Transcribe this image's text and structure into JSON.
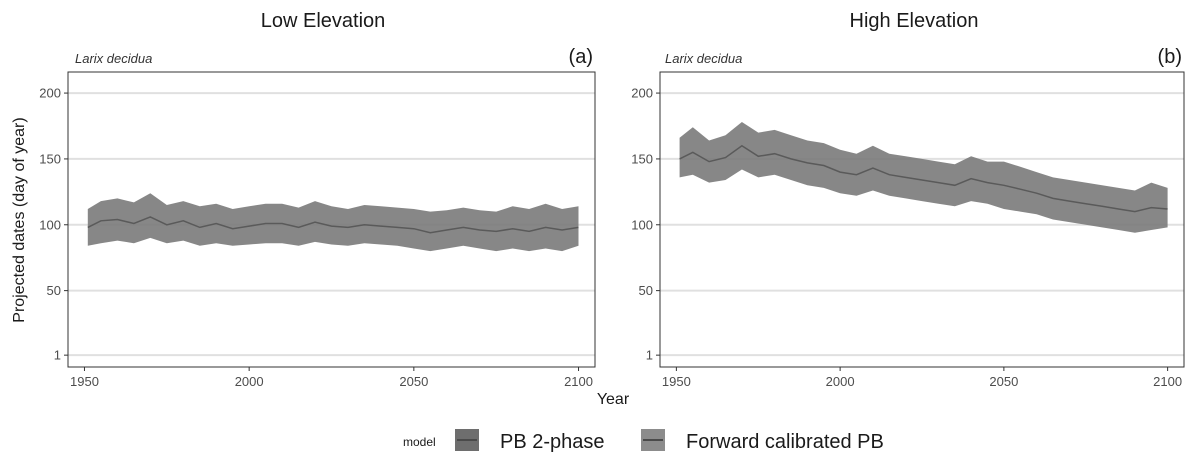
{
  "figure": {
    "y_axis_title": "Projected dates (day of year)",
    "x_axis_title": "Year"
  },
  "legend": {
    "title": "model",
    "items": [
      {
        "label": "PB 2-phase",
        "color": "#6e6e6e"
      },
      {
        "label": "Forward calibrated PB",
        "color": "#8c8c8c"
      }
    ]
  },
  "colors": {
    "band": "#7a7a7a",
    "line": "#5a5a5a",
    "grid": "#e0e0e0",
    "panel_border": "#333333"
  },
  "chart_data": [
    {
      "type": "area",
      "title": "Low Elevation",
      "tag": "(a)",
      "annotation": "Larix decidua",
      "xlim": [
        1945,
        2105
      ],
      "ylim": [
        -8,
        216
      ],
      "x_ticks": [
        1950,
        2000,
        2050,
        2100
      ],
      "y_ticks": [
        1,
        50,
        100,
        150,
        200
      ],
      "grid": "horizontal",
      "series": [
        {
          "x": [
            1951,
            1955,
            1960,
            1965,
            1970,
            1975,
            1980,
            1985,
            1990,
            1995,
            2000,
            2005,
            2010,
            2015,
            2020,
            2025,
            2030,
            2035,
            2040,
            2045,
            2050,
            2055,
            2060,
            2065,
            2070,
            2075,
            2080,
            2085,
            2090,
            2095,
            2100
          ],
          "lower": [
            84,
            86,
            88,
            86,
            90,
            86,
            88,
            84,
            86,
            84,
            85,
            86,
            86,
            84,
            87,
            85,
            84,
            86,
            85,
            84,
            82,
            80,
            82,
            84,
            82,
            80,
            82,
            80,
            82,
            80,
            84
          ],
          "center": [
            98,
            103,
            104,
            101,
            106,
            100,
            103,
            98,
            101,
            97,
            99,
            101,
            101,
            98,
            102,
            99,
            98,
            100,
            99,
            98,
            97,
            94,
            96,
            98,
            96,
            95,
            97,
            95,
            98,
            96,
            98
          ],
          "upper": [
            112,
            118,
            120,
            117,
            124,
            115,
            118,
            114,
            116,
            112,
            114,
            116,
            116,
            113,
            118,
            114,
            112,
            115,
            114,
            113,
            112,
            110,
            111,
            113,
            111,
            110,
            114,
            112,
            116,
            112,
            114
          ]
        }
      ]
    },
    {
      "type": "area",
      "title": "High Elevation",
      "tag": "(b)",
      "annotation": "Larix decidua",
      "xlim": [
        1945,
        2105
      ],
      "ylim": [
        -8,
        216
      ],
      "x_ticks": [
        1950,
        2000,
        2050,
        2100
      ],
      "y_ticks": [
        1,
        50,
        100,
        150,
        200
      ],
      "grid": "horizontal",
      "series": [
        {
          "x": [
            1951,
            1955,
            1960,
            1965,
            1970,
            1975,
            1980,
            1985,
            1990,
            1995,
            2000,
            2005,
            2010,
            2015,
            2020,
            2025,
            2030,
            2035,
            2040,
            2045,
            2050,
            2055,
            2060,
            2065,
            2070,
            2075,
            2080,
            2085,
            2090,
            2095,
            2100
          ],
          "lower": [
            136,
            138,
            132,
            134,
            142,
            136,
            138,
            134,
            130,
            128,
            124,
            122,
            126,
            122,
            120,
            118,
            116,
            114,
            118,
            116,
            112,
            110,
            108,
            104,
            102,
            100,
            98,
            96,
            94,
            96,
            98
          ],
          "center": [
            150,
            155,
            148,
            151,
            160,
            152,
            154,
            150,
            147,
            145,
            140,
            138,
            143,
            138,
            136,
            134,
            132,
            130,
            135,
            132,
            130,
            127,
            124,
            120,
            118,
            116,
            114,
            112,
            110,
            113,
            112
          ],
          "upper": [
            166,
            174,
            164,
            168,
            178,
            170,
            172,
            168,
            164,
            162,
            157,
            154,
            160,
            154,
            152,
            150,
            148,
            146,
            152,
            148,
            148,
            144,
            140,
            136,
            134,
            132,
            130,
            128,
            126,
            132,
            128
          ]
        }
      ]
    }
  ]
}
